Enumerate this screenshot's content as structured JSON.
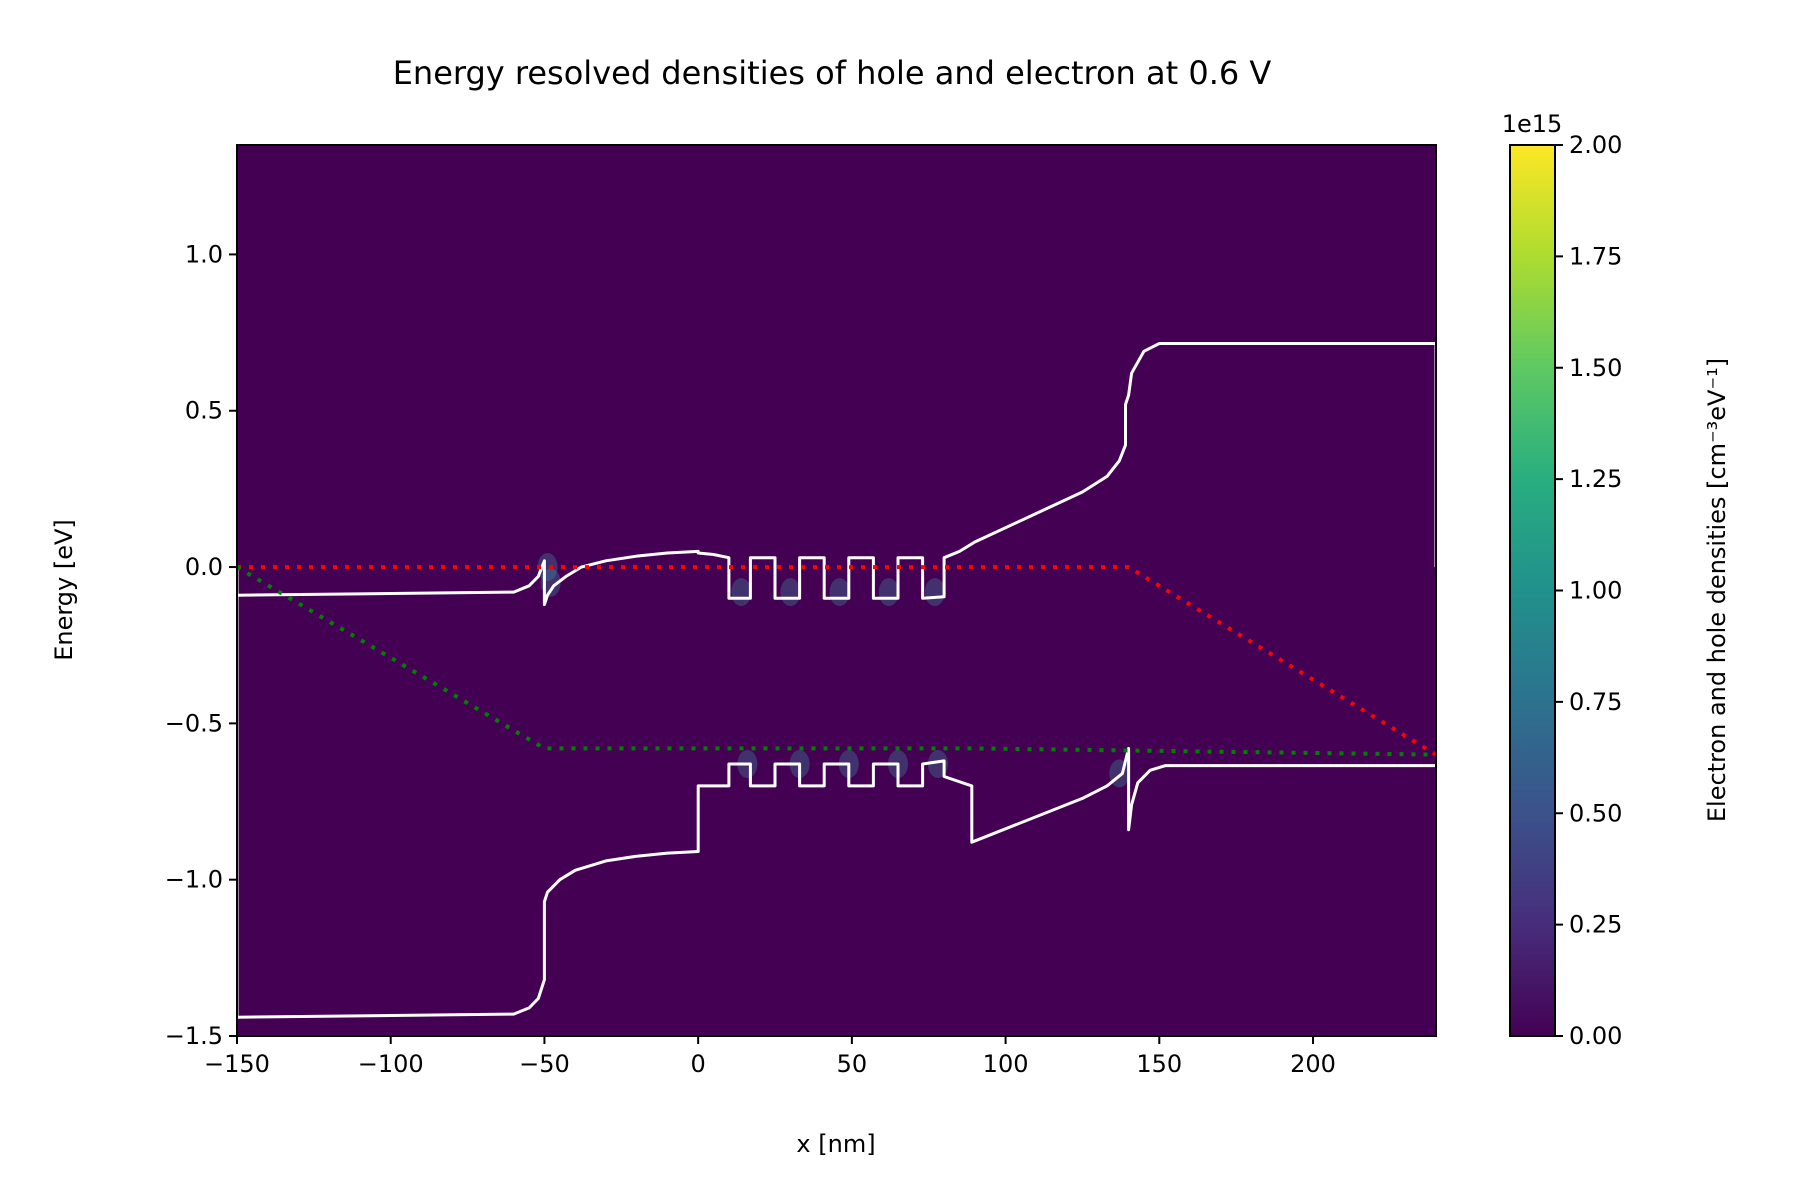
{
  "chart_data": {
    "type": "heatmap",
    "title": "Energy resolved densities of hole and electron at 0.6 V",
    "xlabel": "x [nm]",
    "ylabel": "Energy [eV]",
    "xlim": [
      -150,
      240
    ],
    "ylim": [
      -1.5,
      1.35
    ],
    "x_ticks": [
      -150,
      -100,
      -50,
      0,
      50,
      100,
      150,
      200
    ],
    "x_tick_labels": [
      "−150",
      "−100",
      "−50",
      "0",
      "50",
      "100",
      "150",
      "200"
    ],
    "y_ticks": [
      -1.5,
      -1.0,
      -0.5,
      0.0,
      0.5,
      1.0
    ],
    "y_tick_labels": [
      "−1.5",
      "−1.0",
      "−0.5",
      "0.0",
      "0.5",
      "1.0"
    ],
    "colorbar": {
      "label": "Electron and hole densities [cm⁻³eV⁻¹]",
      "offset_text": "1e15",
      "range": [
        0,
        2.0
      ],
      "ticks": [
        0.0,
        0.25,
        0.5,
        0.75,
        1.0,
        1.25,
        1.5,
        1.75,
        2.0
      ],
      "tick_labels": [
        "0.00",
        "0.25",
        "0.50",
        "0.75",
        "1.00",
        "1.25",
        "1.50",
        "1.75",
        "2.00"
      ],
      "colormap": "viridis"
    },
    "background_color": "#440154",
    "series": [
      {
        "key": "conduction_band",
        "color": "#ffffff",
        "style": "solid",
        "x": [
          -150,
          -150,
          -60,
          -55,
          -52,
          -50,
          -50,
          -49,
          -47,
          -43,
          -38,
          -30,
          -20,
          -10,
          0,
          0,
          5,
          10,
          10,
          17,
          17,
          25,
          25,
          33,
          33,
          41,
          41,
          49,
          49,
          57,
          57,
          65,
          65,
          73,
          73,
          80,
          80,
          85,
          90,
          125,
          133,
          137,
          139,
          139,
          140,
          141,
          145,
          150,
          240,
          240
        ],
        "y": [
          0.0,
          -0.09,
          -0.08,
          -0.06,
          -0.03,
          0.02,
          -0.12,
          -0.09,
          -0.06,
          -0.03,
          0.0,
          0.02,
          0.035,
          0.045,
          0.05,
          0.045,
          0.04,
          0.03,
          -0.1,
          -0.1,
          0.03,
          0.03,
          -0.1,
          -0.1,
          0.03,
          0.03,
          -0.1,
          -0.1,
          0.03,
          0.03,
          -0.1,
          -0.1,
          0.03,
          0.03,
          -0.1,
          -0.095,
          0.03,
          0.05,
          0.08,
          0.24,
          0.29,
          0.34,
          0.39,
          0.52,
          0.55,
          0.62,
          0.69,
          0.715,
          0.715,
          0.0
        ]
      },
      {
        "key": "valence_band",
        "color": "#ffffff",
        "style": "solid",
        "x": [
          -150,
          -150,
          -60,
          -55,
          -52,
          -50,
          -50,
          -49,
          -45,
          -40,
          -30,
          -20,
          -10,
          0,
          0,
          10,
          10,
          17,
          17,
          25,
          25,
          33,
          33,
          41,
          41,
          49,
          49,
          57,
          57,
          65,
          65,
          73,
          73,
          80,
          80,
          89,
          89,
          125,
          133,
          138,
          140,
          140,
          141,
          143,
          147,
          152,
          240,
          240
        ],
        "y": [
          0.0,
          -1.44,
          -1.43,
          -1.41,
          -1.38,
          -1.32,
          -1.07,
          -1.04,
          -1.0,
          -0.97,
          -0.94,
          -0.925,
          -0.915,
          -0.91,
          -0.7,
          -0.7,
          -0.63,
          -0.63,
          -0.7,
          -0.7,
          -0.63,
          -0.63,
          -0.7,
          -0.7,
          -0.63,
          -0.63,
          -0.7,
          -0.7,
          -0.63,
          -0.63,
          -0.7,
          -0.7,
          -0.63,
          -0.62,
          -0.67,
          -0.7,
          -0.88,
          -0.74,
          -0.7,
          -0.66,
          -0.58,
          -0.84,
          -0.76,
          -0.69,
          -0.65,
          -0.635,
          -0.635,
          -0.63
        ]
      },
      {
        "key": "hole_quasi_fermi_level",
        "color": "#ff0000",
        "style": "dotted",
        "x": [
          -150,
          140,
          240
        ],
        "y": [
          0.0,
          0.0,
          -0.6
        ]
      },
      {
        "key": "electron_quasi_fermi_level",
        "color": "#008000",
        "style": "dotted",
        "x": [
          -150,
          -50,
          90,
          240
        ],
        "y": [
          0.0,
          -0.58,
          -0.58,
          -0.6
        ]
      }
    ]
  }
}
